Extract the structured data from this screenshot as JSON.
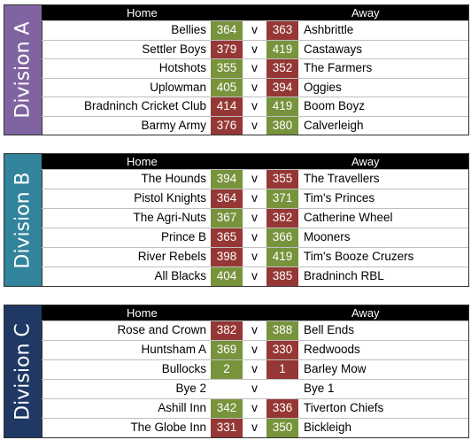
{
  "colors": {
    "win": "#77933c",
    "loss": "#953735",
    "header": "#000000"
  },
  "divisions": [
    {
      "label": "Division A",
      "color": "#8064a2",
      "home_header": "Home",
      "away_header": "Away",
      "matches": [
        {
          "home": "Bellies",
          "home_score": "364",
          "vs": "v",
          "away_score": "363",
          "away": "Ashbrittle",
          "home_result": "win",
          "away_result": "loss"
        },
        {
          "home": "Settler Boys",
          "home_score": "379",
          "vs": "v",
          "away_score": "419",
          "away": "Castaways",
          "home_result": "loss",
          "away_result": "win"
        },
        {
          "home": "Hotshots",
          "home_score": "355",
          "vs": "v",
          "away_score": "352",
          "away": "The Farmers",
          "home_result": "win",
          "away_result": "loss"
        },
        {
          "home": "Uplowman",
          "home_score": "405",
          "vs": "v",
          "away_score": "394",
          "away": "Oggies",
          "home_result": "win",
          "away_result": "loss"
        },
        {
          "home": "Bradninch Cricket Club",
          "home_score": "414",
          "vs": "v",
          "away_score": "419",
          "away": "Boom Boyz",
          "home_result": "loss",
          "away_result": "win"
        },
        {
          "home": "Barmy Army",
          "home_score": "376",
          "vs": "v",
          "away_score": "380",
          "away": "Calverleigh",
          "home_result": "loss",
          "away_result": "win"
        }
      ]
    },
    {
      "label": "Division B",
      "color": "#31849b",
      "home_header": "Home",
      "away_header": "Away",
      "matches": [
        {
          "home": "The Hounds",
          "home_score": "394",
          "vs": "v",
          "away_score": "355",
          "away": "The Travellers",
          "home_result": "win",
          "away_result": "loss"
        },
        {
          "home": "Pistol Knights",
          "home_score": "364",
          "vs": "v",
          "away_score": "371",
          "away": "Tim's Princes",
          "home_result": "loss",
          "away_result": "win"
        },
        {
          "home": "The Agri-Nuts",
          "home_score": "367",
          "vs": "v",
          "away_score": "362",
          "away": "Catherine Wheel",
          "home_result": "win",
          "away_result": "loss"
        },
        {
          "home": "Prince B",
          "home_score": "365",
          "vs": "v",
          "away_score": "366",
          "away": "Mooners",
          "home_result": "loss",
          "away_result": "win"
        },
        {
          "home": "River Rebels",
          "home_score": "398",
          "vs": "v",
          "away_score": "419",
          "away": "Tim's Booze Cruzers",
          "home_result": "loss",
          "away_result": "win"
        },
        {
          "home": "All Blacks",
          "home_score": "404",
          "vs": "v",
          "away_score": "385",
          "away": "Bradninch RBL",
          "home_result": "win",
          "away_result": "loss"
        }
      ]
    },
    {
      "label": "Division C",
      "color": "#1f3864",
      "home_header": "Home",
      "away_header": "Away",
      "matches": [
        {
          "home": "Rose and Crown",
          "home_score": "382",
          "vs": "v",
          "away_score": "388",
          "away": "Bell Ends",
          "home_result": "loss",
          "away_result": "win"
        },
        {
          "home": "Huntsham A",
          "home_score": "369",
          "vs": "v",
          "away_score": "330",
          "away": "Redwoods",
          "home_result": "win",
          "away_result": "loss"
        },
        {
          "home": "Bullocks",
          "home_score": "2",
          "vs": "v",
          "away_score": "1",
          "away": "Barley Mow",
          "home_result": "win",
          "away_result": "loss"
        },
        {
          "home": "Bye 2",
          "home_score": "",
          "vs": "v",
          "away_score": "",
          "away": "Bye 1",
          "home_result": "none",
          "away_result": "none"
        },
        {
          "home": "Ashill Inn",
          "home_score": "342",
          "vs": "v",
          "away_score": "336",
          "away": "Tiverton Chiefs",
          "home_result": "win",
          "away_result": "loss"
        },
        {
          "home": "The Globe Inn",
          "home_score": "331",
          "vs": "v",
          "away_score": "350",
          "away": "Bickleigh",
          "home_result": "loss",
          "away_result": "win"
        }
      ]
    }
  ]
}
